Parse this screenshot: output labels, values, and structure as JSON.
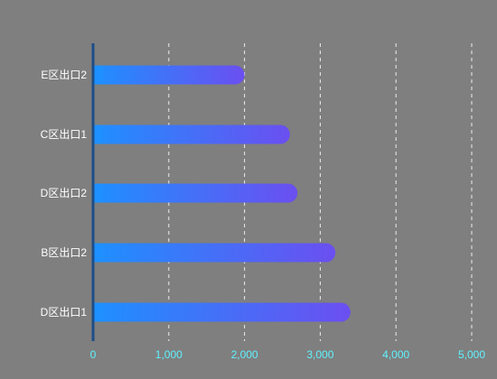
{
  "chart_data": {
    "type": "bar",
    "orientation": "horizontal",
    "categories": [
      "D区出口1",
      "B区出口2",
      "D区出口2",
      "C区出口1",
      "E区出口2"
    ],
    "values": [
      3400,
      3200,
      2700,
      2600,
      2000
    ],
    "xlim": [
      0,
      5000
    ],
    "x_ticks": [
      0,
      1000,
      2000,
      3000,
      4000,
      5000
    ],
    "x_tick_labels": [
      "0",
      "1,000",
      "2,000",
      "3,000",
      "4,000",
      "5,000"
    ],
    "grid": "vertical-dashed",
    "legend": "none",
    "title": "",
    "xlabel": "",
    "ylabel": ""
  },
  "colors": {
    "background": "#7f7f7f",
    "bar_start": "#1e90ff",
    "bar_end": "#6b4ff0",
    "axis_line": "#1d4e89",
    "x_tick_text": "#5ff3ff",
    "y_tick_text": "#ffffff",
    "grid": "#ffffff"
  }
}
